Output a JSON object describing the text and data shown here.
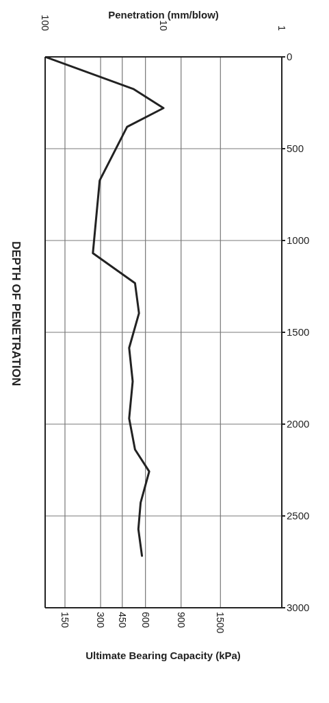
{
  "chart_data": {
    "type": "line",
    "xlabel": "Penetration (mm/blow)",
    "ylabel": "DEPTH OF PENETRATION",
    "annotations": [
      "Ultimate Bearing Capacity (kPa)",
      "150",
      "300",
      "450",
      "600",
      "900",
      "1500"
    ],
    "series": [
      {
        "color": "#222222",
        "x": [
          100,
          17.8,
          10.0,
          20.3,
          34.6,
          39.5,
          17.4,
          16.1,
          19.5,
          18.2,
          19.5,
          17.4,
          13.2,
          15.6,
          16.3,
          15.2
        ],
        "values": [
          0,
          176,
          279,
          381,
          673,
          1069,
          1232,
          1396,
          1585,
          1767,
          1969,
          2138,
          2258,
          2428,
          2572,
          2717
        ]
      }
    ],
    "xlim": [
      100,
      1
    ],
    "xticks": [
      100,
      10,
      1
    ],
    "ylim": [
      3000,
      0
    ],
    "yticks": [
      0,
      500,
      1000,
      1500,
      2000,
      2500,
      3000
    ],
    "ref_lines": [
      {
        "axis": "x",
        "value": 68,
        "color": "#777777"
      },
      {
        "axis": "x",
        "value": 34,
        "color": "#777777"
      },
      {
        "axis": "x",
        "value": 22.3,
        "color": "#777777"
      },
      {
        "axis": "x",
        "value": 14.2,
        "color": "#777777"
      },
      {
        "axis": "x",
        "value": 7.1,
        "color": "#777777"
      },
      {
        "axis": "x",
        "value": 3.3,
        "color": "#777777"
      }
    ],
    "log": "x",
    "grid": "y",
    "marker": "none",
    "line_style": "solid"
  }
}
